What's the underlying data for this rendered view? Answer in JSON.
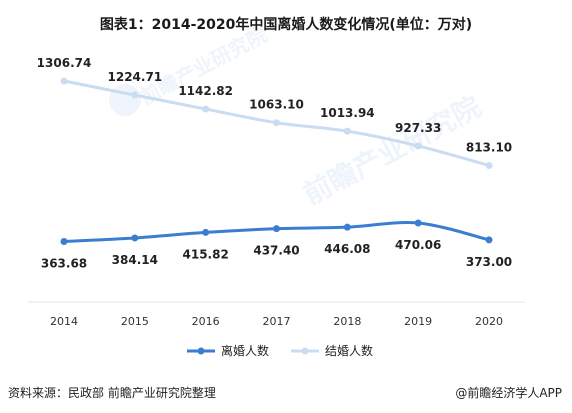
{
  "title": "图表1：2014-2020年中国离婚人数变化情况(单位：万对)",
  "source": "资料来源：民政部 前瞻产业研究院整理",
  "brand": "@前瞻经济学人APP",
  "watermark": "前瞻产业研究院",
  "chart_data": {
    "type": "line",
    "title": "图表1：2014-2020年中国离婚人数变化情况(单位：万对)",
    "categories": [
      "2014",
      "2015",
      "2016",
      "2017",
      "2018",
      "2019",
      "2020"
    ],
    "series": [
      {
        "name": "离婚人数",
        "color": "#3b7ed0",
        "values": [
          363.68,
          384.14,
          415.82,
          437.4,
          446.08,
          470.06,
          373.0
        ]
      },
      {
        "name": "结婚人数",
        "color": "#c9dcf2",
        "values": [
          1306.74,
          1224.71,
          1142.82,
          1063.1,
          1013.94,
          927.33,
          813.1
        ]
      }
    ],
    "value_labels": {
      "离婚人数": [
        "363.68",
        "384.14",
        "415.82",
        "437.40",
        "446.08",
        "470.06",
        "373.00"
      ],
      "结婚人数": [
        "1306.74",
        "1224.71",
        "1142.82",
        "1063.10",
        "1013.94",
        "927.33",
        "813.10"
      ]
    },
    "legend": "bottom-center",
    "grid": false
  }
}
